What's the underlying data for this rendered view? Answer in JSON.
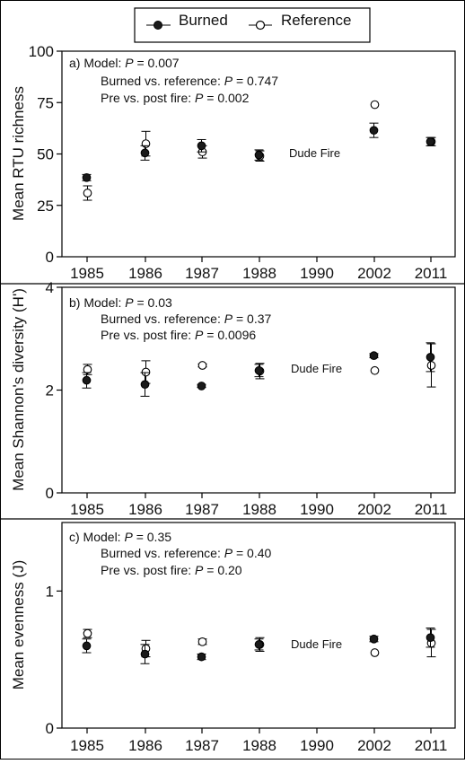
{
  "legend": {
    "burned_label": "Burned",
    "reference_label": "Reference"
  },
  "chart_data": [
    {
      "type": "scatter",
      "panel": "a",
      "ylabel": "Mean RTU richness",
      "ylim": [
        0,
        100
      ],
      "yticks": [
        "0",
        "25",
        "50",
        "75",
        "100"
      ],
      "categories": [
        "1985",
        "1986",
        "1987",
        "1988",
        "1990",
        "2002",
        "2011"
      ],
      "annotation": {
        "model": "a) Model: P = 0.007",
        "burned_vs_reference": "Burned vs. reference: P = 0.747",
        "pre_vs_post": "Pre vs. post fire: P = 0.002",
        "event": "Dude Fire",
        "event_after": "1988"
      },
      "series": [
        {
          "name": "Burned",
          "marker": "filled",
          "values": [
            38.5,
            50.5,
            54,
            49.5,
            null,
            61.5,
            56
          ],
          "error": [
            1.5,
            3.5,
            3,
            2.5,
            null,
            3.5,
            2
          ]
        },
        {
          "name": "Reference",
          "marker": "open",
          "values": [
            31,
            55,
            51,
            49,
            null,
            74,
            56
          ],
          "error": [
            3.5,
            6,
            3,
            2.5,
            null,
            0,
            2
          ]
        }
      ]
    },
    {
      "type": "scatter",
      "panel": "b",
      "ylabel": "Mean Shannon's diversity (H')",
      "ylim": [
        0,
        4
      ],
      "yticks": [
        "0",
        "2",
        "4"
      ],
      "categories": [
        "1985",
        "1986",
        "1987",
        "1988",
        "1990",
        "2002",
        "2011"
      ],
      "annotation": {
        "model": "b) Model: P = 0.03",
        "burned_vs_reference": "Burned vs. reference: P = 0.37",
        "pre_vs_post": "Pre vs. post fire: P = 0.0096",
        "event": "Dude Fire",
        "event_after": "1988"
      },
      "series": [
        {
          "name": "Burned",
          "marker": "filled",
          "values": [
            2.19,
            2.11,
            2.08,
            2.38,
            null,
            2.67,
            2.64
          ],
          "error": [
            0.15,
            0.23,
            0.03,
            0.12,
            null,
            0.04,
            0.28
          ]
        },
        {
          "name": "Reference",
          "marker": "open",
          "values": [
            2.4,
            2.35,
            2.48,
            2.37,
            null,
            2.38,
            2.48
          ],
          "error": [
            0.1,
            0.22,
            0.03,
            0.15,
            null,
            0.0,
            0.42
          ]
        }
      ]
    },
    {
      "type": "scatter",
      "panel": "c",
      "ylabel": "Mean evenness (J)",
      "ylim": [
        0,
        1.5
      ],
      "yticks": [
        "0",
        "1"
      ],
      "categories": [
        "1985",
        "1986",
        "1987",
        "1988",
        "1990",
        "2002",
        "2011"
      ],
      "annotation": {
        "model": "c) Model: P = 0.35",
        "burned_vs_reference": "Burned vs. reference: P = 0.40",
        "pre_vs_post": "Pre vs. post fire: P = 0.20",
        "event": "Dude Fire",
        "event_after": "1988"
      },
      "series": [
        {
          "name": "Burned",
          "marker": "filled",
          "values": [
            0.6,
            0.54,
            0.52,
            0.61,
            null,
            0.65,
            0.66
          ],
          "error": [
            0.05,
            0.07,
            0.02,
            0.04,
            null,
            0.02,
            0.07
          ]
        },
        {
          "name": "Reference",
          "marker": "open",
          "values": [
            0.69,
            0.58,
            0.63,
            0.61,
            null,
            0.55,
            0.62
          ],
          "error": [
            0.03,
            0.06,
            0.02,
            0.05,
            null,
            0.0,
            0.1
          ]
        }
      ]
    }
  ]
}
